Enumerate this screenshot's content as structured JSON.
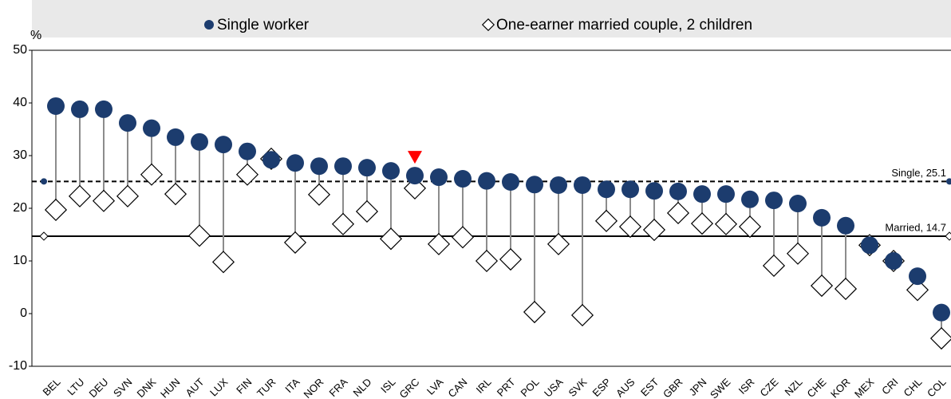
{
  "chart_data": {
    "type": "dot",
    "y_unit": "%",
    "categories": [
      "BEL",
      "LTU",
      "DEU",
      "SVN",
      "DNK",
      "HUN",
      "AUT",
      "LUX",
      "FIN",
      "TUR",
      "ITA",
      "NOR",
      "FRA",
      "NLD",
      "ISL",
      "GRC",
      "LVA",
      "CAN",
      "IRL",
      "PRT",
      "POL",
      "USA",
      "SVK",
      "ESP",
      "AUS",
      "EST",
      "GBR",
      "JPN",
      "SWE",
      "ISR",
      "CZE",
      "NZL",
      "CHE",
      "KOR",
      "MEX",
      "CRI",
      "CHL",
      "COL"
    ],
    "series": [
      {
        "name": "Single worker",
        "color": "#1c3c6e",
        "marker": "circle",
        "values": [
          39.4,
          38.8,
          38.8,
          36.2,
          35.2,
          33.5,
          32.6,
          32.1,
          30.8,
          29.2,
          28.6,
          28.0,
          28.0,
          27.7,
          27.1,
          26.2,
          25.9,
          25.6,
          25.2,
          25.0,
          24.5,
          24.4,
          24.4,
          23.6,
          23.6,
          23.3,
          23.2,
          22.7,
          22.7,
          21.7,
          21.5,
          20.9,
          18.2,
          16.7,
          13.0,
          10.0,
          7.1,
          0.2
        ]
      },
      {
        "name": "One-earner married couple, 2 children",
        "color": "#ffffff",
        "marker": "diamond",
        "values": [
          19.7,
          22.3,
          21.4,
          22.3,
          26.4,
          22.7,
          14.8,
          9.8,
          26.4,
          29.4,
          13.5,
          22.6,
          17.0,
          19.4,
          14.2,
          23.8,
          13.2,
          14.5,
          10.0,
          10.3,
          0.3,
          13.2,
          -0.3,
          17.6,
          16.5,
          15.9,
          19.1,
          17.1,
          17.0,
          16.5,
          9.1,
          11.4,
          5.3,
          4.7,
          13.0,
          10.0,
          4.5,
          -4.7
        ]
      }
    ],
    "reference_lines": [
      {
        "label": "Single, 25.1",
        "value": 25.1,
        "style": "dashed"
      },
      {
        "label": "Married, 14.7",
        "value": 14.7,
        "style": "solid"
      }
    ],
    "highlight": "GRC",
    "highlight_color": "#ff0000",
    "ylim": [
      -10,
      50
    ],
    "yticks": [
      -10,
      0,
      10,
      20,
      30,
      40,
      50
    ],
    "grid": false
  }
}
